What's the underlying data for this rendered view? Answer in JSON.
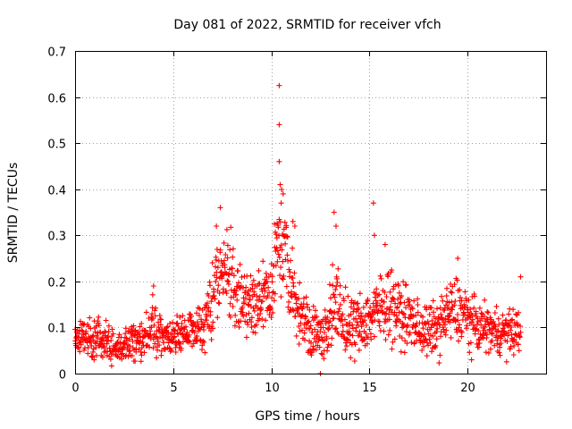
{
  "chart_data": {
    "type": "scatter",
    "title": "Day 081 of 2022, SRMTID for receiver vfch",
    "xlabel": "GPS time / hours",
    "ylabel": "SRMTID / TECUs",
    "xlim": [
      0,
      24
    ],
    "ylim": [
      0,
      0.7
    ],
    "xticks": [
      0,
      5,
      10,
      15,
      20
    ],
    "xtick_labels": [
      "0",
      "5",
      "10",
      "15",
      "20"
    ],
    "yticks": [
      0,
      0.1,
      0.2,
      0.3,
      0.4,
      0.5,
      0.6,
      0.7
    ],
    "ytick_labels": [
      "0",
      "0.1",
      "0.2",
      "0.3",
      "0.4",
      "0.5",
      "0.6",
      "0.7"
    ],
    "grid": true,
    "marker": "+",
    "color": "#ff0000",
    "profile": {
      "x": [
        0,
        0.5,
        1,
        1.5,
        2,
        2.5,
        3,
        3.5,
        4,
        4.5,
        5,
        5.5,
        6,
        6.5,
        7,
        7.3,
        7.6,
        8,
        8.5,
        9,
        9.5,
        10,
        10.3,
        10.6,
        11,
        11.5,
        12,
        12.4,
        12.8,
        13.2,
        13.5,
        14,
        14.5,
        15,
        15.5,
        16,
        16.5,
        17,
        17.5,
        18,
        18.5,
        19,
        19.5,
        20,
        20.5,
        21,
        21.5,
        22,
        22.7
      ],
      "median": [
        0.075,
        0.08,
        0.08,
        0.07,
        0.06,
        0.06,
        0.07,
        0.075,
        0.1,
        0.08,
        0.08,
        0.09,
        0.1,
        0.1,
        0.15,
        0.22,
        0.22,
        0.2,
        0.15,
        0.15,
        0.16,
        0.16,
        0.3,
        0.28,
        0.18,
        0.13,
        0.1,
        0.08,
        0.1,
        0.15,
        0.12,
        0.1,
        0.11,
        0.12,
        0.14,
        0.16,
        0.13,
        0.12,
        0.1,
        0.09,
        0.1,
        0.13,
        0.14,
        0.12,
        0.1,
        0.1,
        0.09,
        0.09,
        0.09
      ],
      "spread": [
        0.025,
        0.025,
        0.03,
        0.03,
        0.02,
        0.02,
        0.025,
        0.025,
        0.04,
        0.025,
        0.025,
        0.03,
        0.025,
        0.035,
        0.05,
        0.05,
        0.05,
        0.05,
        0.05,
        0.05,
        0.05,
        0.05,
        0.06,
        0.06,
        0.05,
        0.04,
        0.035,
        0.03,
        0.035,
        0.06,
        0.05,
        0.04,
        0.04,
        0.04,
        0.045,
        0.05,
        0.04,
        0.04,
        0.035,
        0.035,
        0.035,
        0.04,
        0.045,
        0.04,
        0.03,
        0.03,
        0.03,
        0.03,
        0.03
      ]
    },
    "highlight_points": [
      {
        "x": 10.4,
        "y": 0.625
      },
      {
        "x": 10.4,
        "y": 0.54
      },
      {
        "x": 10.4,
        "y": 0.46
      },
      {
        "x": 10.45,
        "y": 0.41
      },
      {
        "x": 10.6,
        "y": 0.39
      },
      {
        "x": 10.5,
        "y": 0.37
      },
      {
        "x": 7.4,
        "y": 0.36
      },
      {
        "x": 13.2,
        "y": 0.35
      },
      {
        "x": 15.2,
        "y": 0.37
      },
      {
        "x": 15.25,
        "y": 0.3
      },
      {
        "x": 13.3,
        "y": 0.32
      },
      {
        "x": 7.2,
        "y": 0.32
      },
      {
        "x": 11.1,
        "y": 0.33
      },
      {
        "x": 11.2,
        "y": 0.32
      },
      {
        "x": 4.0,
        "y": 0.19
      },
      {
        "x": 19.5,
        "y": 0.25
      },
      {
        "x": 15.8,
        "y": 0.28
      },
      {
        "x": 22.7,
        "y": 0.21
      },
      {
        "x": 12.5,
        "y": 0.0
      }
    ]
  }
}
